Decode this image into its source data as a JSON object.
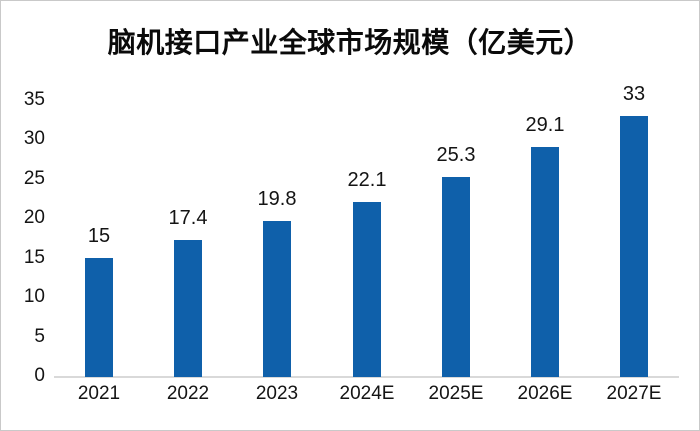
{
  "chart_data": {
    "type": "bar",
    "title": "脑机接口产业全球市场规模（亿美元）",
    "categories": [
      "2021",
      "2022",
      "2023",
      "2024E",
      "2025E",
      "2026E",
      "2027E"
    ],
    "values": [
      15,
      17.4,
      19.8,
      22.1,
      25.3,
      29.1,
      33
    ],
    "value_labels": [
      "15",
      "17.4",
      "19.8",
      "22.1",
      "25.3",
      "29.1",
      "33"
    ],
    "yticks": [
      0,
      5,
      10,
      15,
      20,
      25,
      30,
      35
    ],
    "ylim": [
      0,
      35
    ],
    "xlabel": "",
    "ylabel": "",
    "grid": "off",
    "legend": "none",
    "bar_color": "#0f60aa",
    "axis_line_color": "#d9d9d9",
    "text_color": "#141414",
    "background_color": "#ffffff"
  }
}
